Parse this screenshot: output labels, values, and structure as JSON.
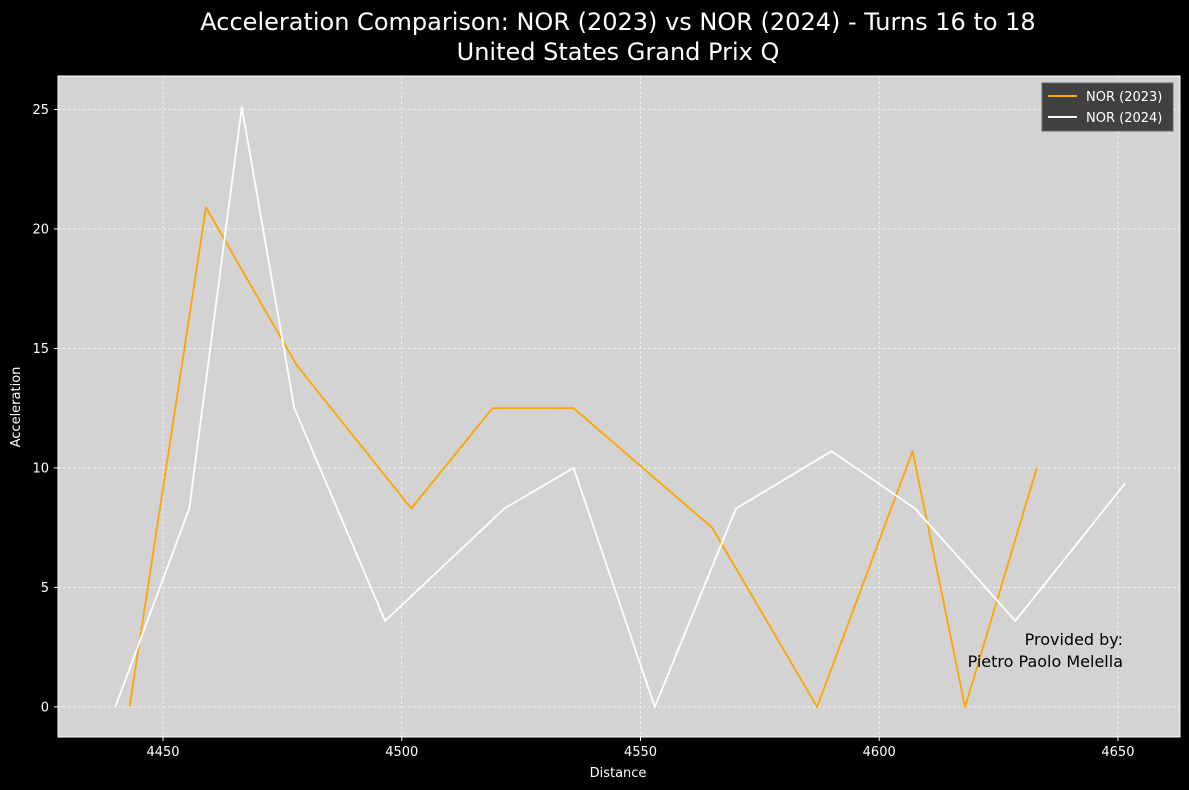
{
  "chart_data": {
    "type": "line",
    "title": "Acceleration Comparison: NOR (2023) vs NOR (2024) - Turns 16 to 18",
    "subtitle": "United States Grand Prix Q",
    "xlabel": "Distance",
    "ylabel": "Acceleration",
    "xlim": [
      4428,
      4663
    ],
    "ylim": [
      -1.26,
      26.4
    ],
    "xticks": [
      4450,
      4500,
      4550,
      4600,
      4650
    ],
    "yticks": [
      0,
      5,
      10,
      15,
      20,
      25
    ],
    "grid": true,
    "legend_position": "top-right",
    "series": [
      {
        "name": "NOR (2023)",
        "color": "#FFA500",
        "x": [
          4443,
          4459,
          4478,
          4502,
          4519,
          4536,
          4565,
          4587,
          4607,
          4618,
          4633
        ],
        "y": [
          0,
          20.9,
          14.3,
          8.3,
          12.5,
          12.5,
          7.5,
          0,
          10.7,
          0,
          10.0
        ]
      },
      {
        "name": "NOR (2024)",
        "color": "#FFFFFF",
        "x": [
          4440,
          4455.5,
          4466.5,
          4477.5,
          4496.5,
          4521.5,
          4536,
          4553,
          4570,
          4590,
          4607.5,
          4628.5,
          4651.5
        ],
        "y": [
          0,
          8.3,
          25.1,
          12.5,
          3.6,
          8.3,
          10.0,
          0,
          8.3,
          10.7,
          8.3,
          3.6,
          9.35
        ]
      }
    ],
    "annotation": {
      "line1": "Provided by:",
      "line2": "Pietro Paolo Melella"
    }
  },
  "colors": {
    "figure_background": "#000000",
    "plot_background": "#D3D3D3",
    "grid": "#FFFFFF",
    "legend_background": "#404040"
  }
}
